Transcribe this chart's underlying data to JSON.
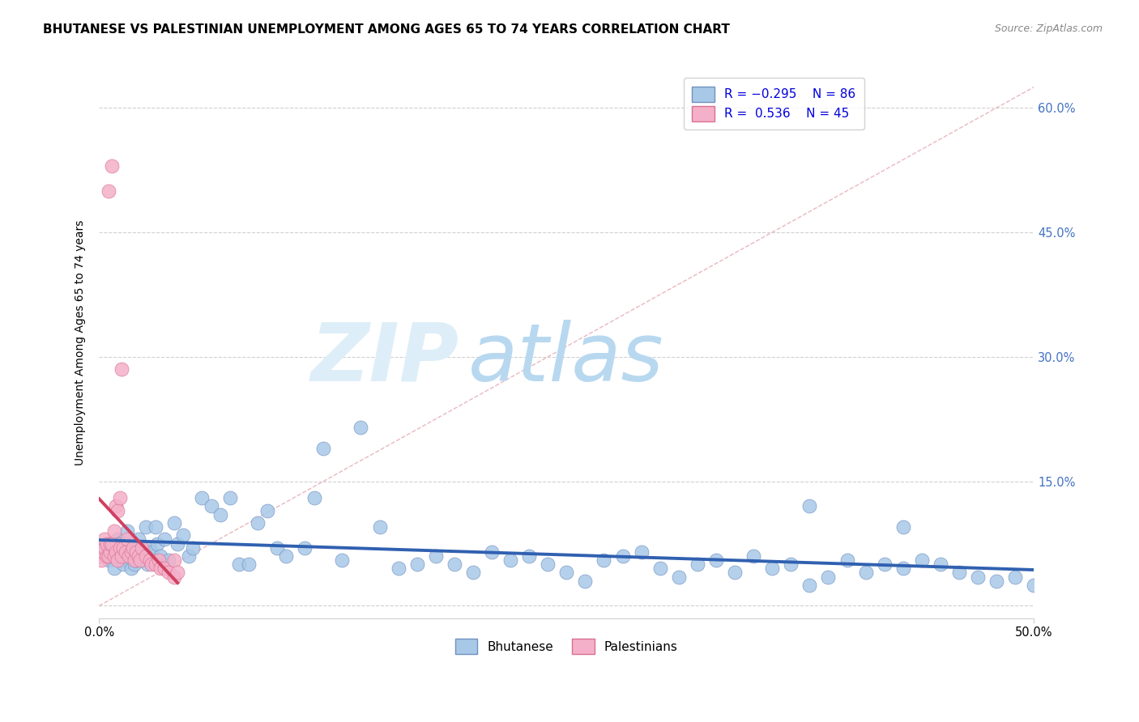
{
  "title": "BHUTANESE VS PALESTINIAN UNEMPLOYMENT AMONG AGES 65 TO 74 YEARS CORRELATION CHART",
  "source": "Source: ZipAtlas.com",
  "ylabel": "Unemployment Among Ages 65 to 74 years",
  "xmin": 0.0,
  "xmax": 0.5,
  "ymin": -0.015,
  "ymax": 0.65,
  "ytick_values": [
    0.0,
    0.15,
    0.3,
    0.45,
    0.6
  ],
  "blue_R": -0.295,
  "blue_N": 86,
  "pink_R": 0.536,
  "pink_N": 45,
  "blue_scatter_color": "#a8c8e8",
  "blue_edge_color": "#7090c0",
  "pink_scatter_color": "#f4b0c8",
  "pink_edge_color": "#d87090",
  "blue_line_color": "#3060b0",
  "pink_line_color": "#d04060",
  "diagonal_color": "#e8b0b8",
  "grid_color": "#d0d0d0",
  "tick_color": "#4472c4",
  "title_fontsize": 11,
  "axis_fontsize": 10.5,
  "legend_fontsize": 11,
  "blue_x": [
    0.003,
    0.005,
    0.007,
    0.008,
    0.01,
    0.01,
    0.011,
    0.012,
    0.013,
    0.014,
    0.015,
    0.016,
    0.017,
    0.018,
    0.019,
    0.02,
    0.021,
    0.022,
    0.023,
    0.025,
    0.026,
    0.027,
    0.028,
    0.03,
    0.031,
    0.033,
    0.035,
    0.037,
    0.04,
    0.042,
    0.045,
    0.048,
    0.05,
    0.055,
    0.06,
    0.065,
    0.07,
    0.075,
    0.08,
    0.085,
    0.09,
    0.095,
    0.1,
    0.11,
    0.115,
    0.12,
    0.13,
    0.14,
    0.15,
    0.16,
    0.17,
    0.18,
    0.19,
    0.2,
    0.21,
    0.22,
    0.23,
    0.24,
    0.25,
    0.26,
    0.27,
    0.28,
    0.29,
    0.3,
    0.31,
    0.32,
    0.33,
    0.34,
    0.35,
    0.36,
    0.37,
    0.38,
    0.39,
    0.4,
    0.41,
    0.42,
    0.43,
    0.44,
    0.45,
    0.46,
    0.47,
    0.48,
    0.49,
    0.5,
    0.38,
    0.43
  ],
  "blue_y": [
    0.07,
    0.055,
    0.06,
    0.045,
    0.08,
    0.065,
    0.075,
    0.055,
    0.05,
    0.07,
    0.09,
    0.065,
    0.045,
    0.075,
    0.05,
    0.055,
    0.08,
    0.06,
    0.055,
    0.095,
    0.05,
    0.07,
    0.065,
    0.095,
    0.075,
    0.06,
    0.08,
    0.055,
    0.1,
    0.075,
    0.085,
    0.06,
    0.07,
    0.13,
    0.12,
    0.11,
    0.13,
    0.05,
    0.05,
    0.1,
    0.115,
    0.07,
    0.06,
    0.07,
    0.13,
    0.19,
    0.055,
    0.215,
    0.095,
    0.045,
    0.05,
    0.06,
    0.05,
    0.04,
    0.065,
    0.055,
    0.06,
    0.05,
    0.04,
    0.03,
    0.055,
    0.06,
    0.065,
    0.045,
    0.035,
    0.05,
    0.055,
    0.04,
    0.06,
    0.045,
    0.05,
    0.025,
    0.035,
    0.055,
    0.04,
    0.05,
    0.045,
    0.055,
    0.05,
    0.04,
    0.035,
    0.03,
    0.035,
    0.025,
    0.12,
    0.095
  ],
  "pink_x": [
    0.0,
    0.001,
    0.002,
    0.003,
    0.003,
    0.004,
    0.004,
    0.005,
    0.005,
    0.006,
    0.006,
    0.007,
    0.007,
    0.008,
    0.008,
    0.009,
    0.009,
    0.01,
    0.01,
    0.011,
    0.011,
    0.012,
    0.012,
    0.013,
    0.014,
    0.015,
    0.016,
    0.017,
    0.018,
    0.019,
    0.02,
    0.021,
    0.022,
    0.023,
    0.025,
    0.027,
    0.028,
    0.03,
    0.032,
    0.033,
    0.035,
    0.037,
    0.04,
    0.04,
    0.042
  ],
  "pink_y": [
    0.06,
    0.055,
    0.065,
    0.07,
    0.08,
    0.06,
    0.075,
    0.06,
    0.5,
    0.065,
    0.075,
    0.075,
    0.53,
    0.06,
    0.09,
    0.065,
    0.12,
    0.055,
    0.115,
    0.07,
    0.13,
    0.285,
    0.06,
    0.07,
    0.065,
    0.08,
    0.06,
    0.065,
    0.07,
    0.055,
    0.065,
    0.06,
    0.055,
    0.07,
    0.06,
    0.055,
    0.05,
    0.05,
    0.055,
    0.045,
    0.045,
    0.04,
    0.055,
    0.035,
    0.04
  ]
}
